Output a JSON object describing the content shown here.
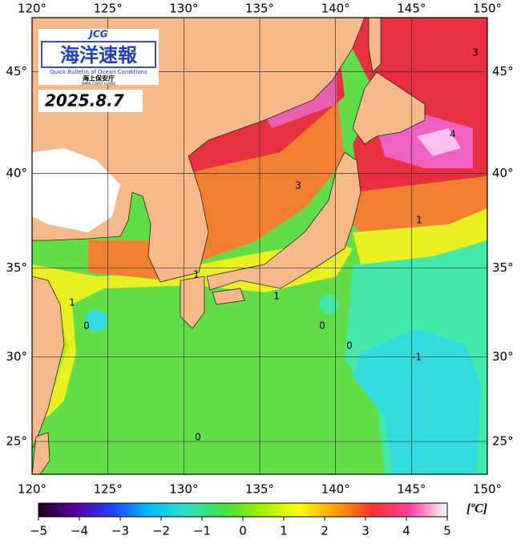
{
  "logo": {
    "acronym": "JCG",
    "title": "海洋速報",
    "subtitle": "Quick Bulletin of Ocean Conditions",
    "agency": "海上保安庁",
    "agency_en": "JAPAN COAST GUARD"
  },
  "date": "2025.8.7",
  "map": {
    "lon_range": [
      120,
      150
    ],
    "lat_range": [
      23,
      47.5
    ],
    "lon_ticks": [
      {
        "value": 120,
        "label": "120°"
      },
      {
        "value": 125,
        "label": "125°"
      },
      {
        "value": 130,
        "label": "130°"
      },
      {
        "value": 135,
        "label": "135°"
      },
      {
        "value": 140,
        "label": "140°"
      },
      {
        "value": 145,
        "label": "145°"
      },
      {
        "value": 150,
        "label": "150°"
      }
    ],
    "lat_ticks": [
      {
        "value": 25,
        "label": "25°"
      },
      {
        "value": 30,
        "label": "30°"
      },
      {
        "value": 35,
        "label": "35°"
      },
      {
        "value": 40,
        "label": "40°"
      },
      {
        "value": 45,
        "label": "45°"
      }
    ]
  },
  "colorbar": {
    "range": [
      -5,
      5
    ],
    "ticks": [
      {
        "value": -5,
        "label": "−5"
      },
      {
        "value": -4,
        "label": "−4"
      },
      {
        "value": -3,
        "label": "−3"
      },
      {
        "value": -2,
        "label": "−2"
      },
      {
        "value": -1,
        "label": "−1"
      },
      0,
      1,
      2,
      3,
      4,
      5
    ],
    "unit": "[ºC]",
    "colors": [
      "#200020",
      "#5a00a0",
      "#2040ff",
      "#00c0ff",
      "#30e0c0",
      "#40e040",
      "#a0f000",
      "#ffff00",
      "#ffa000",
      "#ff3030",
      "#ff40a0",
      "#ffffff"
    ]
  },
  "contour_labels": [
    "3",
    "3",
    "4",
    "1",
    "1",
    "1",
    "1",
    "0",
    "0",
    "0",
    "-1",
    "0"
  ]
}
